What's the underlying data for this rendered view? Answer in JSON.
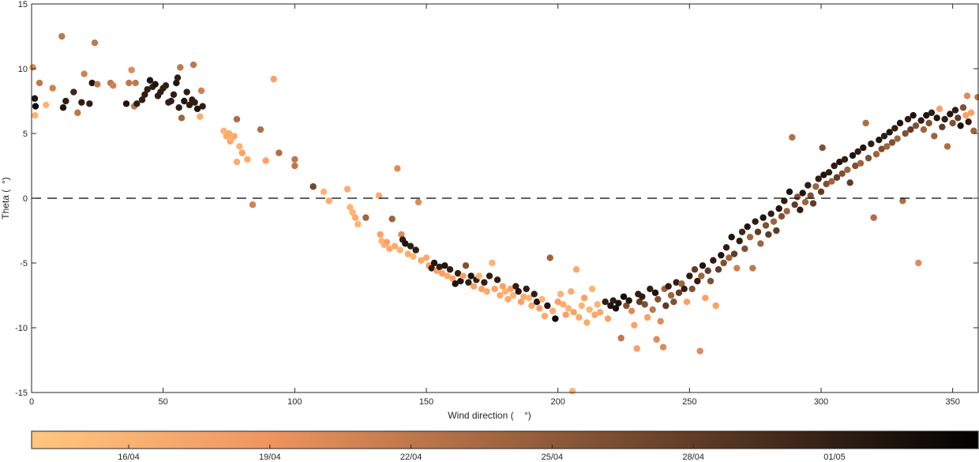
{
  "chart_data": {
    "type": "scatter",
    "xlabel": "Wind direction (    °)",
    "ylabel": "Theta (  °)",
    "xlim": [
      0,
      360
    ],
    "ylim": [
      -15,
      15
    ],
    "x_ticks": [
      "0",
      "50",
      "100",
      "150",
      "200",
      "250",
      "300",
      "350"
    ],
    "y_ticks": [
      "-15",
      "-10",
      "-5",
      "0",
      "5",
      "10",
      "15"
    ],
    "reference_line": {
      "y": 0,
      "style": "dashed"
    },
    "colorbar": {
      "tick_labels": [
        "16/04",
        "19/04",
        "22/04",
        "25/04",
        "28/04",
        "01/05"
      ],
      "colormap": "copper (reversed)",
      "color_start": "#ffc77f",
      "color_end": "#000000"
    },
    "points": [
      [
        0.5,
        10.1,
        0.3
      ],
      [
        1.2,
        7.7,
        0.9
      ],
      [
        1.5,
        7.1,
        0.95
      ],
      [
        1.3,
        6.4,
        0.1
      ],
      [
        3,
        8.9,
        0.4
      ],
      [
        5.5,
        7.2,
        0.1
      ],
      [
        8,
        8.5,
        0.35
      ],
      [
        11.5,
        12.5,
        0.4
      ],
      [
        12,
        7.0,
        0.9
      ],
      [
        13,
        7.5,
        0.85
      ],
      [
        16,
        8.2,
        0.8
      ],
      [
        17.5,
        6.6,
        0.4
      ],
      [
        19,
        7.4,
        0.85
      ],
      [
        20,
        9.6,
        0.35
      ],
      [
        22,
        7.3,
        0.85
      ],
      [
        23,
        8.9,
        0.9
      ],
      [
        24,
        12.0,
        0.4
      ],
      [
        25,
        8.8,
        0.4
      ],
      [
        30,
        8.9,
        0.4
      ],
      [
        31,
        8.7,
        0.35
      ],
      [
        36,
        7.3,
        0.9
      ],
      [
        37,
        8.9,
        0.4
      ],
      [
        38,
        9.9,
        0.3
      ],
      [
        39,
        7.1,
        0.4
      ],
      [
        39.5,
        8.9,
        0.4
      ],
      [
        40,
        7.3,
        0.85
      ],
      [
        42,
        7.6,
        0.85
      ],
      [
        43,
        8.0,
        0.85
      ],
      [
        44,
        8.4,
        0.85
      ],
      [
        45,
        9.1,
        0.9
      ],
      [
        46,
        8.6,
        0.85
      ],
      [
        47,
        8.8,
        0.9
      ],
      [
        48,
        7.9,
        0.85
      ],
      [
        49,
        8.2,
        0.85
      ],
      [
        50,
        8.5,
        0.85
      ],
      [
        51,
        8.7,
        0.85
      ],
      [
        52,
        7.4,
        0.85
      ],
      [
        53,
        7.5,
        0.85
      ],
      [
        54,
        8.0,
        0.85
      ],
      [
        55,
        8.9,
        0.9
      ],
      [
        55.5,
        9.3,
        0.85
      ],
      [
        56,
        7.0,
        0.85
      ],
      [
        56.5,
        10.1,
        0.4
      ],
      [
        57,
        6.2,
        0.5
      ],
      [
        58,
        7.5,
        0.9
      ],
      [
        59,
        8.2,
        0.85
      ],
      [
        60,
        7.2,
        0.85
      ],
      [
        61,
        7.6,
        0.85
      ],
      [
        61.5,
        10.3,
        0.4
      ],
      [
        62,
        7.4,
        0.85
      ],
      [
        63,
        6.9,
        0.9
      ],
      [
        64,
        6.3,
        0.15
      ],
      [
        64.5,
        8.3,
        0.35
      ],
      [
        65,
        7.1,
        0.85
      ],
      [
        73,
        5.2,
        0.1
      ],
      [
        74,
        4.8,
        0.15
      ],
      [
        75,
        5.0,
        0.15
      ],
      [
        75.5,
        4.4,
        0.2
      ],
      [
        76,
        4.6,
        0.1
      ],
      [
        77,
        4.8,
        0.15
      ],
      [
        78,
        6.1,
        0.45
      ],
      [
        78,
        2.8,
        0.15
      ],
      [
        79,
        4.0,
        0.1
      ],
      [
        80,
        3.5,
        0.2
      ],
      [
        82,
        3.0,
        0.15
      ],
      [
        84,
        -0.5,
        0.35
      ],
      [
        87,
        5.3,
        0.45
      ],
      [
        89,
        2.9,
        0.2
      ],
      [
        92,
        9.2,
        0.2
      ],
      [
        94,
        3.5,
        0.45
      ],
      [
        100,
        3.0,
        0.4
      ],
      [
        100,
        2.5,
        0.4
      ],
      [
        107,
        0.9,
        0.65
      ],
      [
        111,
        0.5,
        0.1
      ],
      [
        113,
        -0.2,
        0.15
      ],
      [
        120,
        0.7,
        0.15
      ],
      [
        121,
        -0.7,
        0.1
      ],
      [
        122,
        -1.1,
        0.1
      ],
      [
        123,
        -1.5,
        0.15
      ],
      [
        124,
        -2.0,
        0.1
      ],
      [
        127,
        -1.5,
        0.5
      ],
      [
        132,
        0.2,
        0.15
      ],
      [
        132.5,
        -2.8,
        0.2
      ],
      [
        133,
        -3.3,
        0.1
      ],
      [
        134,
        -3.6,
        0.1
      ],
      [
        135,
        -3.4,
        0.2
      ],
      [
        136,
        -3.9,
        0.15
      ],
      [
        137,
        -1.6,
        0.5
      ],
      [
        138,
        -3.7,
        0.15
      ],
      [
        139,
        2.3,
        0.3
      ],
      [
        140,
        -4.0,
        0.1
      ],
      [
        140.5,
        -2.8,
        0.3
      ],
      [
        141,
        -3.2,
        0.85
      ],
      [
        142,
        -3.5,
        0.9
      ],
      [
        143,
        -4.3,
        0.15
      ],
      [
        144,
        -3.7,
        0.85
      ],
      [
        145,
        -4.5,
        0.1
      ],
      [
        146,
        -4.0,
        0.85
      ],
      [
        147,
        -0.3,
        0.3
      ],
      [
        148,
        -4.8,
        0.15
      ],
      [
        150,
        -4.6,
        0.15
      ],
      [
        151,
        -5.2,
        0.2
      ],
      [
        152,
        -5.4,
        0.85
      ],
      [
        153,
        -5.0,
        0.9
      ],
      [
        154,
        -5.6,
        0.2
      ],
      [
        155,
        -5.3,
        0.85
      ],
      [
        156,
        -5.8,
        0.2
      ],
      [
        157,
        -5.2,
        0.9
      ],
      [
        158,
        -6.0,
        0.15
      ],
      [
        159,
        -5.5,
        0.85
      ],
      [
        160,
        -6.2,
        0.2
      ],
      [
        161,
        -6.6,
        0.9
      ],
      [
        162,
        -5.8,
        0.85
      ],
      [
        163,
        -6.4,
        0.9
      ],
      [
        164,
        -6.0,
        0.2
      ],
      [
        165,
        -5.2,
        0.6
      ],
      [
        166,
        -6.5,
        0.85
      ],
      [
        167,
        -6.0,
        0.9
      ],
      [
        168,
        -6.8,
        0.2
      ],
      [
        169,
        -6.3,
        0.85
      ],
      [
        170,
        -6.0,
        0.1
      ],
      [
        171,
        -7.0,
        0.2
      ],
      [
        172,
        -6.5,
        0.85
      ],
      [
        173,
        -7.2,
        0.15
      ],
      [
        174,
        -6.0,
        0.85
      ],
      [
        175,
        -5.0,
        0.1
      ],
      [
        176,
        -7.0,
        0.2
      ],
      [
        177,
        -6.3,
        0.85
      ],
      [
        178,
        -7.5,
        0.15
      ],
      [
        179,
        -6.8,
        0.2
      ],
      [
        180,
        -7.2,
        0.1
      ],
      [
        181,
        -7.8,
        0.15
      ],
      [
        182,
        -7.0,
        0.2
      ],
      [
        183,
        -7.5,
        0.1
      ],
      [
        184,
        -6.8,
        0.85
      ],
      [
        185,
        -7.2,
        0.9
      ],
      [
        186,
        -8.0,
        0.2
      ],
      [
        187,
        -7.6,
        0.15
      ],
      [
        188,
        -7.0,
        0.85
      ],
      [
        189,
        -7.7,
        0.1
      ],
      [
        190,
        -8.3,
        0.15
      ],
      [
        191,
        -7.4,
        0.85
      ],
      [
        192,
        -8.0,
        0.9
      ],
      [
        193,
        -8.5,
        0.2
      ],
      [
        194,
        -7.8,
        0.1
      ],
      [
        195,
        -9.1,
        0.15
      ],
      [
        196,
        -8.3,
        0.9
      ],
      [
        197,
        -4.6,
        0.5
      ],
      [
        198,
        -8.7,
        0.15
      ],
      [
        199,
        -9.3,
        0.95
      ],
      [
        200,
        -8.0,
        0.2
      ],
      [
        201,
        -7.4,
        0.1
      ],
      [
        202,
        -8.2,
        0.15
      ],
      [
        203,
        -9.0,
        0.2
      ],
      [
        204,
        -8.5,
        0.1
      ],
      [
        205,
        -7.2,
        0.15
      ],
      [
        205.5,
        -14.9,
        0.1
      ],
      [
        206,
        -8.8,
        0.2
      ],
      [
        207,
        -5.5,
        0.15
      ],
      [
        208,
        -9.2,
        0.15
      ],
      [
        209,
        -8.3,
        0.1
      ],
      [
        210,
        -7.7,
        0.2
      ],
      [
        211,
        -9.6,
        0.15
      ],
      [
        212,
        -8.6,
        0.1
      ],
      [
        213,
        -7.0,
        0.1
      ],
      [
        214,
        -9.0,
        0.15
      ],
      [
        215,
        -8.2,
        0.1
      ],
      [
        216,
        -8.8,
        0.15
      ],
      [
        218,
        -8.0,
        0.85
      ],
      [
        219,
        -9.3,
        0.2
      ],
      [
        220,
        -8.3,
        0.9
      ],
      [
        221,
        -7.9,
        0.85
      ],
      [
        222,
        -8.5,
        0.95
      ],
      [
        223,
        -8.1,
        0.9
      ],
      [
        224,
        -10.8,
        0.4
      ],
      [
        225,
        -7.6,
        0.95
      ],
      [
        226,
        -8.3,
        0.6
      ],
      [
        227,
        -7.9,
        0.9
      ],
      [
        228,
        -8.7,
        0.3
      ],
      [
        229,
        -9.8,
        0.2
      ],
      [
        230,
        -11.6,
        0.2
      ],
      [
        230.5,
        -7.4,
        0.85
      ],
      [
        231,
        -8.0,
        0.7
      ],
      [
        232,
        -7.6,
        0.85
      ],
      [
        233,
        -8.2,
        0.6
      ],
      [
        234,
        -9.2,
        0.2
      ],
      [
        235,
        -7.0,
        0.85
      ],
      [
        236,
        -8.6,
        0.4
      ],
      [
        237,
        -7.3,
        0.9
      ],
      [
        237.5,
        -10.9,
        0.3
      ],
      [
        238,
        -7.8,
        0.6
      ],
      [
        239,
        -9.5,
        0.3
      ],
      [
        240,
        -11.5,
        0.3
      ],
      [
        240.5,
        -7.0,
        0.5
      ],
      [
        241,
        -8.3,
        0.7
      ],
      [
        242,
        -6.8,
        0.85
      ],
      [
        243,
        -7.5,
        0.5
      ],
      [
        244,
        -8.0,
        0.6
      ],
      [
        245,
        -6.5,
        0.85
      ],
      [
        246,
        -7.3,
        0.7
      ],
      [
        247,
        -6.6,
        0.5
      ],
      [
        248,
        -7.0,
        0.85
      ],
      [
        249,
        -8.0,
        0.2
      ],
      [
        250,
        -6.0,
        0.85
      ],
      [
        251,
        -7.0,
        0.6
      ],
      [
        252,
        -5.5,
        0.7
      ],
      [
        253,
        -6.4,
        0.85
      ],
      [
        254,
        -11.8,
        0.3
      ],
      [
        254.5,
        -6.0,
        0.5
      ],
      [
        255,
        -5.2,
        0.9
      ],
      [
        256,
        -7.7,
        0.2
      ],
      [
        257,
        -5.6,
        0.7
      ],
      [
        258,
        -6.4,
        0.6
      ],
      [
        259,
        -4.8,
        0.85
      ],
      [
        260,
        -8.3,
        0.2
      ],
      [
        261,
        -5.5,
        0.7
      ],
      [
        262,
        -4.4,
        0.9
      ],
      [
        263,
        -5.0,
        0.6
      ],
      [
        264,
        -3.8,
        0.85
      ],
      [
        265,
        -4.6,
        0.5
      ],
      [
        266,
        -3.0,
        0.9
      ],
      [
        267,
        -4.3,
        0.7
      ],
      [
        268,
        -5.4,
        0.35
      ],
      [
        269,
        -3.3,
        0.85
      ],
      [
        270,
        -2.6,
        0.8
      ],
      [
        271,
        -3.9,
        0.6
      ],
      [
        272,
        -2.2,
        0.9
      ],
      [
        273,
        -3.0,
        0.5
      ],
      [
        274,
        -5.4,
        0.4
      ],
      [
        275,
        -1.8,
        0.85
      ],
      [
        276,
        -2.6,
        0.7
      ],
      [
        277,
        -3.5,
        0.5
      ],
      [
        278,
        -1.5,
        0.9
      ],
      [
        279,
        -2.1,
        0.6
      ],
      [
        280,
        -2.8,
        0.7
      ],
      [
        281,
        -1.2,
        0.85
      ],
      [
        282,
        -1.8,
        0.5
      ],
      [
        283,
        -2.5,
        0.7
      ],
      [
        284,
        -0.8,
        0.9
      ],
      [
        285,
        -1.4,
        0.6
      ],
      [
        286,
        -0.2,
        0.85
      ],
      [
        287,
        -1.0,
        0.5
      ],
      [
        288,
        0.5,
        0.9
      ],
      [
        289,
        4.7,
        0.45
      ],
      [
        290,
        -0.5,
        0.7
      ],
      [
        291,
        0.1,
        0.6
      ],
      [
        292,
        -0.9,
        0.85
      ],
      [
        293,
        0.4,
        0.9
      ],
      [
        294,
        -0.3,
        0.5
      ],
      [
        295,
        1.0,
        0.85
      ],
      [
        296,
        0.2,
        0.6
      ],
      [
        297,
        -0.4,
        0.7
      ],
      [
        298,
        0.9,
        0.5
      ],
      [
        299,
        1.5,
        0.85
      ],
      [
        300,
        0.5,
        0.7
      ],
      [
        300.5,
        3.9,
        0.6
      ],
      [
        301,
        1.8,
        0.9
      ],
      [
        302,
        1.1,
        0.6
      ],
      [
        303,
        2.0,
        0.85
      ],
      [
        304,
        1.3,
        0.5
      ],
      [
        305,
        2.5,
        0.85
      ],
      [
        306,
        1.6,
        0.7
      ],
      [
        307,
        2.8,
        0.9
      ],
      [
        308,
        1.9,
        0.6
      ],
      [
        309,
        3.0,
        0.85
      ],
      [
        310,
        2.2,
        0.5
      ],
      [
        311,
        1.2,
        0.7
      ],
      [
        312,
        3.3,
        0.9
      ],
      [
        313,
        2.5,
        0.6
      ],
      [
        314,
        3.6,
        0.85
      ],
      [
        315,
        2.7,
        0.5
      ],
      [
        316,
        3.9,
        0.9
      ],
      [
        317,
        5.8,
        0.45
      ],
      [
        318,
        3.1,
        0.6
      ],
      [
        319,
        4.2,
        0.85
      ],
      [
        320,
        -1.5,
        0.45
      ],
      [
        321,
        3.4,
        0.5
      ],
      [
        322,
        4.5,
        0.9
      ],
      [
        323,
        3.8,
        0.6
      ],
      [
        324,
        4.8,
        0.85
      ],
      [
        325,
        4.0,
        0.5
      ],
      [
        326,
        5.1,
        0.9
      ],
      [
        327,
        4.3,
        0.6
      ],
      [
        328,
        5.4,
        0.85
      ],
      [
        329,
        4.6,
        0.5
      ],
      [
        330,
        5.8,
        0.9
      ],
      [
        331,
        -0.2,
        0.45
      ],
      [
        332,
        5.0,
        0.6
      ],
      [
        333,
        6.1,
        0.85
      ],
      [
        334,
        5.3,
        0.7
      ],
      [
        335,
        6.4,
        0.9
      ],
      [
        336,
        5.6,
        0.6
      ],
      [
        337,
        -5.0,
        0.3
      ],
      [
        338,
        6.0,
        0.85
      ],
      [
        339,
        5.3,
        0.5
      ],
      [
        340,
        6.4,
        0.9
      ],
      [
        341,
        5.8,
        0.6
      ],
      [
        342,
        6.6,
        0.85
      ],
      [
        343,
        4.8,
        0.5
      ],
      [
        344,
        6.2,
        0.9
      ],
      [
        345,
        6.9,
        0.2
      ],
      [
        346,
        5.5,
        0.7
      ],
      [
        347,
        6.1,
        0.85
      ],
      [
        348,
        4.0,
        0.45
      ],
      [
        349,
        6.5,
        0.9
      ],
      [
        350,
        5.8,
        0.6
      ],
      [
        351,
        6.8,
        0.85
      ],
      [
        352,
        6.2,
        0.7
      ],
      [
        353,
        5.6,
        0.9
      ],
      [
        354,
        7.0,
        0.6
      ],
      [
        355,
        6.4,
        0.2
      ],
      [
        355.5,
        7.9,
        0.3
      ],
      [
        356,
        5.9,
        0.85
      ],
      [
        357,
        6.6,
        0.2
      ],
      [
        358,
        5.2,
        0.5
      ],
      [
        359.5,
        7.8,
        0.4
      ]
    ]
  }
}
